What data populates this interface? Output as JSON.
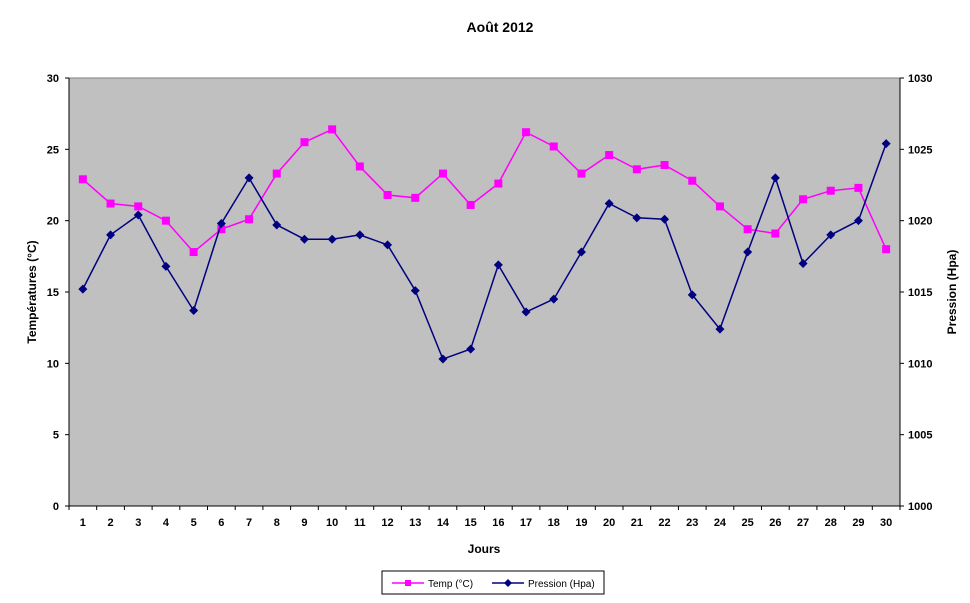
{
  "chart_data": {
    "type": "line",
    "title": "Août 2012",
    "xlabel": "Jours",
    "ylabel": "Températures (°C)",
    "y2label": "Pression (Hpa)",
    "x": [
      1,
      2,
      3,
      4,
      5,
      6,
      7,
      8,
      9,
      10,
      11,
      12,
      13,
      14,
      15,
      16,
      17,
      18,
      19,
      20,
      21,
      22,
      23,
      24,
      25,
      26,
      27,
      28,
      29,
      30
    ],
    "ylim": [
      0,
      30
    ],
    "y2lim": [
      1000,
      1030
    ],
    "yticks": [
      0,
      5,
      10,
      15,
      20,
      25,
      30
    ],
    "y2ticks": [
      1000,
      1005,
      1010,
      1015,
      1020,
      1025,
      1030
    ],
    "grid": false,
    "legend": "bottom",
    "series": [
      {
        "name": "Temp (°C)",
        "axis": "left",
        "color": "#ff00ff",
        "marker": "square",
        "values": [
          22.9,
          21.2,
          21.0,
          20.0,
          17.8,
          19.4,
          20.1,
          23.3,
          25.5,
          26.4,
          23.8,
          21.8,
          21.6,
          23.3,
          21.1,
          22.6,
          26.2,
          25.2,
          23.3,
          24.6,
          23.6,
          23.9,
          22.8,
          21.0,
          19.4,
          19.1,
          21.5,
          22.1,
          22.3,
          18.0
        ]
      },
      {
        "name": "Pression (Hpa)",
        "axis": "right",
        "color": "#000080",
        "marker": "diamond",
        "values": [
          1015.2,
          1019.0,
          1020.4,
          1016.8,
          1013.7,
          1019.8,
          1023.0,
          1019.7,
          1018.7,
          1018.7,
          1019.0,
          1018.3,
          1015.1,
          1010.3,
          1011.0,
          1016.9,
          1013.6,
          1014.5,
          1017.8,
          1021.2,
          1020.2,
          1020.1,
          1014.8,
          1012.4,
          1017.8,
          1023.0,
          1017.0,
          1019.0,
          1020.0,
          1025.4
        ]
      }
    ]
  },
  "colors": {
    "plot_area": "#c0c0c0",
    "temp": "#ff00ff",
    "pression": "#000080"
  }
}
